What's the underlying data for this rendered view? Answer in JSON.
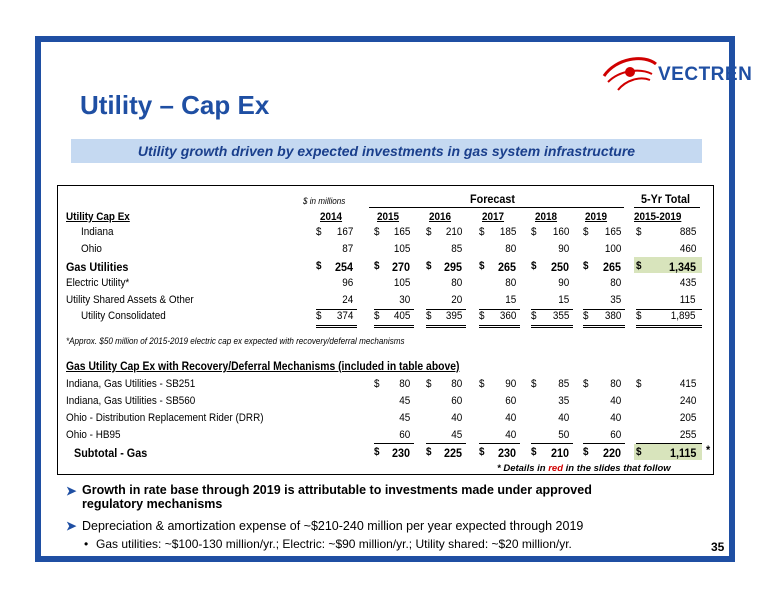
{
  "logo": {
    "text": "VECTREN"
  },
  "title": "Utility – Cap Ex",
  "banner": "Utility growth driven by expected investments in gas system infrastructure",
  "table": {
    "units_note": "$ in millions",
    "forecast_label": "Forecast",
    "total_label": "5-Yr Total",
    "section1_title": "Utility Cap Ex",
    "years": [
      "2014",
      "2015",
      "2016",
      "2017",
      "2018",
      "2019",
      "2015-2019"
    ],
    "rows": [
      {
        "label": "Indiana",
        "indent": true,
        "bold": false,
        "dollar": true,
        "values": [
          "167",
          "165",
          "210",
          "185",
          "160",
          "165",
          "885"
        ]
      },
      {
        "label": "Ohio",
        "indent": true,
        "bold": false,
        "dollar": false,
        "values": [
          "87",
          "105",
          "85",
          "80",
          "90",
          "100",
          "460"
        ]
      },
      {
        "label": "Gas Utilities",
        "indent": false,
        "bold": true,
        "dollar": true,
        "values": [
          "254",
          "270",
          "295",
          "265",
          "250",
          "265",
          "1,345"
        ]
      },
      {
        "label": "Electric Utility*",
        "indent": false,
        "bold": false,
        "dollar": false,
        "values": [
          "96",
          "105",
          "80",
          "80",
          "90",
          "80",
          "435"
        ]
      },
      {
        "label": "Utility Shared Assets & Other",
        "indent": false,
        "bold": false,
        "dollar": false,
        "values": [
          "24",
          "30",
          "20",
          "15",
          "15",
          "35",
          "115"
        ]
      },
      {
        "label": "Utility Consolidated",
        "indent": true,
        "bold": false,
        "dollar": true,
        "values": [
          "374",
          "405",
          "395",
          "360",
          "355",
          "380",
          "1,895"
        ]
      }
    ],
    "footnote": "*Approx. $50 million of 2015-2019 electric cap ex expected with recovery/deferral mechanisms",
    "section2_title": "Gas Utility Cap Ex with Recovery/Deferral Mechanisms (included in table above)",
    "rows2": [
      {
        "label": "Indiana, Gas Utilities - SB251",
        "dollar": true,
        "values": [
          "80",
          "80",
          "90",
          "85",
          "80",
          "415"
        ]
      },
      {
        "label": "Indiana, Gas Utilities - SB560",
        "dollar": false,
        "values": [
          "45",
          "60",
          "60",
          "35",
          "40",
          "240"
        ]
      },
      {
        "label": "Ohio - Distribution Replacement Rider (DRR)",
        "dollar": false,
        "values": [
          "45",
          "40",
          "40",
          "40",
          "40",
          "205"
        ]
      },
      {
        "label": "Ohio - HB95",
        "dollar": false,
        "values": [
          "60",
          "45",
          "40",
          "50",
          "60",
          "255"
        ]
      },
      {
        "label": "Subtotal - Gas",
        "dollar": true,
        "bold": true,
        "values": [
          "230",
          "225",
          "230",
          "210",
          "220",
          "1,115"
        ]
      }
    ],
    "subtotal_star": "*"
  },
  "details": {
    "prefix": "* Details in ",
    "red": "red",
    "suffix": " in the slides that follow"
  },
  "bullets": [
    {
      "text": "Growth in rate base through 2019 is attributable to investments made under approved regulatory mechanisms"
    },
    {
      "text": "Depreciation & amortization expense of ~$210-240 million per year expected through 2019"
    },
    {
      "text": "Gas utilities: ~$100-130 million/yr.; Electric: ~$90 million/yr.; Utility shared: ~$20 million/yr."
    }
  ],
  "page_number": "35",
  "colors": {
    "frame": "#1f4fa3",
    "banner": "#c5d9f1",
    "highlight": "#d8e4bc",
    "red": "#d00000"
  }
}
